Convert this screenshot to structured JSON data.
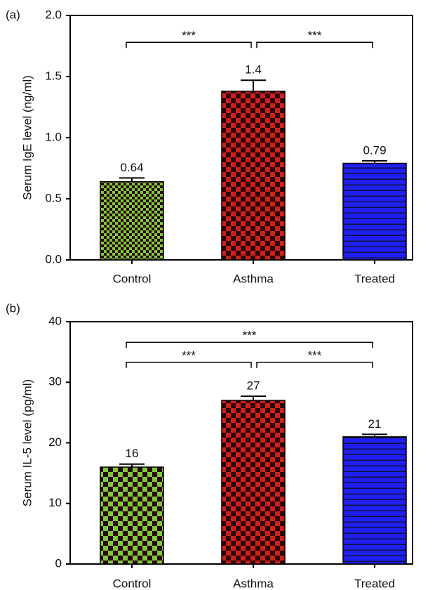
{
  "chart_data": [
    {
      "type": "bar",
      "panel_label": "(a)",
      "ylabel": "Serum IgE level (ng/ml)",
      "categories": [
        "Control",
        "Asthma",
        "Treated"
      ],
      "values": [
        0.64,
        1.38,
        0.79
      ],
      "value_labels": [
        "0.64",
        "1.4",
        "0.79"
      ],
      "errors": [
        0.03,
        0.09,
        0.02
      ],
      "colors": [
        "#7ec83c",
        "#d0201c",
        "#1f1ff0"
      ],
      "patterns": [
        "checker",
        "checker",
        "hstripes"
      ],
      "ylim": [
        0,
        2
      ],
      "yticks": [
        {
          "value": 0,
          "label": "0.0"
        },
        0.5,
        {
          "value": 1,
          "label": "1.0"
        },
        1.5,
        {
          "value": 2,
          "label": "2.0"
        }
      ],
      "brackets": [
        {
          "text": "***",
          "from": 0,
          "to": 1,
          "y": 1.78
        },
        {
          "text": "***",
          "from": 1,
          "to": 2,
          "y": 1.78
        }
      ]
    },
    {
      "type": "bar",
      "panel_label": "(b)",
      "ylabel": "Serum IL-5 level (pg/ml)",
      "categories": [
        "Control",
        "Asthma",
        "Treated"
      ],
      "values": [
        16,
        27,
        21
      ],
      "errors": [
        0.5,
        0.7,
        0.4
      ],
      "colors": [
        "#7ec83c",
        "#d0201c",
        "#1f1ff0"
      ],
      "patterns": [
        "checker",
        "checker",
        "hstripes"
      ],
      "ylim": [
        0,
        40
      ],
      "yticks": [
        0,
        10,
        20,
        30,
        40
      ],
      "brackets": [
        {
          "text": "***",
          "from": 0,
          "to": 2,
          "y": 36.6
        },
        {
          "text": "***",
          "from": 0,
          "to": 1,
          "y": 33.3
        },
        {
          "text": "***",
          "from": 1,
          "to": 2,
          "y": 33.3
        }
      ]
    }
  ]
}
